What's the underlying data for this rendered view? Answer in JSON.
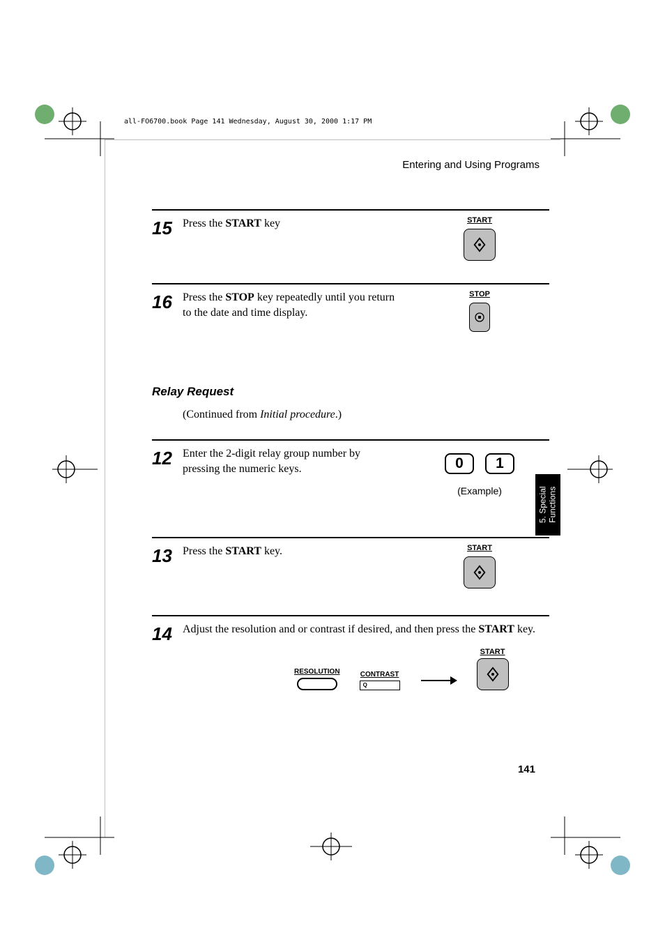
{
  "colors": {
    "text": "#000000",
    "page_bg": "#ffffff",
    "button_fill": "#bfbfbf",
    "tab_bg": "#000000",
    "tab_text": "#ffffff",
    "reg_green": "#6fae6f",
    "reg_cyan": "#7fb7c7"
  },
  "typography": {
    "body_font": "Times New Roman",
    "ui_font": "Helvetica",
    "step_num_size_pt": 20,
    "body_size_pt": 12,
    "heading_size_pt": 13,
    "btn_label_size_pt": 8,
    "mini_label_size_pt": 7
  },
  "header_bookline": "all-FO6700.book  Page 141  Wednesday, August 30, 2000  1:17 PM",
  "running_head": "Entering and Using Programs",
  "side_tab": "5. Special\nFunctions",
  "page_number": "141",
  "section": {
    "title": "Relay Request",
    "continued_prefix": "(Continued from ",
    "continued_ital": "Initial procedure",
    "continued_suffix": ".)"
  },
  "steps": [
    {
      "num": "15",
      "text_parts": [
        "Press the ",
        "START",
        " key"
      ],
      "key": {
        "label": "START",
        "type": "start"
      }
    },
    {
      "num": "16",
      "text_parts": [
        "Press the ",
        "STOP",
        " key repeatedly until you return to the date and time display."
      ],
      "key": {
        "label": "STOP",
        "type": "stop"
      }
    },
    {
      "num": "12",
      "text_parts": [
        "Enter the 2-digit relay group number by pressing the numeric keys."
      ],
      "key": {
        "type": "digits",
        "digits": [
          "0",
          "1"
        ],
        "caption": "(Example)"
      }
    },
    {
      "num": "13",
      "text_parts": [
        "Press the ",
        "START",
        " key."
      ],
      "key": {
        "label": "START",
        "type": "start"
      }
    },
    {
      "num": "14",
      "text_parts": [
        "Adjust the resolution and or contrast if desired, and then press the ",
        "START",
        " key."
      ],
      "key": {
        "type": "res-contrast-start",
        "res_label": "RESOLUTION",
        "con_label": "CONTRAST",
        "start_label": "START"
      }
    }
  ]
}
